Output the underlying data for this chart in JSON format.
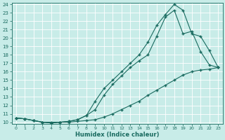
{
  "xlabel": "Humidex (Indice chaleur)",
  "bg_color": "#c8ece8",
  "grid_color": "#b8dcd8",
  "line_color": "#1a6b60",
  "xlim": [
    -0.5,
    23.5
  ],
  "ylim": [
    9.8,
    24.2
  ],
  "xticks": [
    0,
    1,
    2,
    3,
    4,
    5,
    6,
    7,
    8,
    9,
    10,
    11,
    12,
    13,
    14,
    15,
    16,
    17,
    18,
    19,
    20,
    21,
    22,
    23
  ],
  "yticks": [
    10,
    11,
    12,
    13,
    14,
    15,
    16,
    17,
    18,
    19,
    20,
    21,
    22,
    23,
    24
  ],
  "line1_x": [
    0,
    1,
    2,
    3,
    4,
    5,
    6,
    7,
    8,
    9,
    10,
    11,
    12,
    13,
    14,
    15,
    16,
    17,
    18,
    19,
    20,
    21,
    22,
    23
  ],
  "line1_y": [
    10.5,
    10.4,
    10.2,
    10.0,
    10.0,
    10.0,
    10.0,
    10.1,
    10.2,
    10.3,
    10.6,
    11.0,
    11.5,
    12.0,
    12.5,
    13.2,
    13.8,
    14.4,
    15.0,
    15.6,
    16.0,
    16.2,
    16.3,
    16.5
  ],
  "line2_x": [
    0,
    1,
    2,
    3,
    4,
    5,
    6,
    7,
    8,
    9,
    10,
    11,
    12,
    13,
    14,
    15,
    16,
    17,
    18,
    19,
    20,
    21,
    22,
    23
  ],
  "line2_y": [
    10.5,
    10.4,
    10.2,
    10.0,
    9.9,
    10.0,
    10.1,
    10.3,
    10.8,
    11.5,
    13.2,
    14.5,
    15.5,
    16.5,
    17.3,
    18.0,
    20.2,
    22.5,
    23.3,
    20.5,
    20.8,
    18.4,
    16.8,
    16.5
  ],
  "line3_x": [
    0,
    1,
    2,
    3,
    4,
    5,
    6,
    7,
    8,
    9,
    10,
    11,
    12,
    13,
    14,
    15,
    16,
    17,
    18,
    19,
    20,
    21,
    22,
    23
  ],
  "line3_y": [
    10.5,
    10.4,
    10.2,
    10.0,
    9.9,
    10.0,
    10.1,
    10.3,
    10.8,
    12.5,
    14.0,
    15.0,
    16.0,
    17.0,
    18.0,
    19.5,
    21.5,
    22.8,
    24.0,
    23.3,
    20.5,
    20.2,
    18.5,
    16.5
  ]
}
